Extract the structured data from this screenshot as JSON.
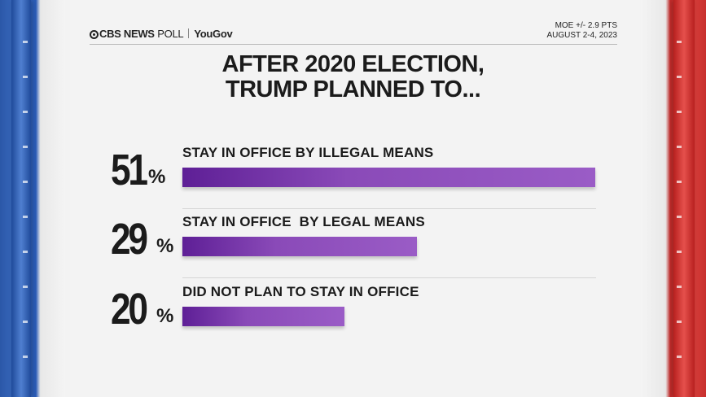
{
  "header": {
    "brand_cbs": "CBS NEWS",
    "brand_poll": "POLL",
    "brand_partner": "YouGov",
    "moe": "MOE +/- 2.9 PTS",
    "dates": "AUGUST 2-4, 2023"
  },
  "colors": {
    "bar": "#8a4ab8",
    "left_stripe": "#2b57a8",
    "right_stripe": "#c8302e"
  },
  "chart_data": {
    "type": "bar",
    "orientation": "horizontal",
    "title": "AFTER 2020 ELECTION, TRUMP PLANNED TO...",
    "title_lines": [
      "AFTER 2020 ELECTION,",
      "TRUMP PLANNED TO..."
    ],
    "categories": [
      "STAY IN OFFICE BY ILLEGAL MEANS",
      "STAY IN OFFICE  BY LEGAL MEANS",
      "DID NOT PLAN TO STAY IN OFFICE"
    ],
    "values": [
      51,
      29,
      20
    ],
    "value_labels": [
      "51",
      "29",
      "20"
    ],
    "unit": "%",
    "xlim": [
      0,
      51
    ]
  }
}
